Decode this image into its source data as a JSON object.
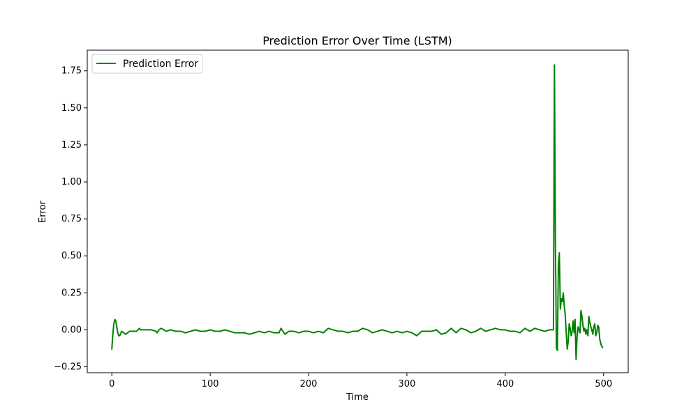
{
  "chart_data": {
    "type": "line",
    "title": "Prediction Error Over Time (LSTM)",
    "xlabel": "Time",
    "ylabel": "Error",
    "xlim": [
      -25,
      525
    ],
    "ylim": [
      -0.29,
      1.89
    ],
    "xticks": [
      0,
      100,
      200,
      300,
      400,
      500
    ],
    "xtick_labels": [
      "0",
      "100",
      "200",
      "300",
      "400",
      "500"
    ],
    "yticks": [
      -0.25,
      0,
      0.25,
      0.5,
      0.75,
      1.0,
      1.25,
      1.5,
      1.75
    ],
    "ytick_labels": [
      "−0.25",
      "0.00",
      "0.25",
      "0.50",
      "0.75",
      "1.00",
      "1.25",
      "1.50",
      "1.75"
    ],
    "grid": false,
    "legend_position": "upper-left",
    "series": [
      {
        "name": "Prediction Error",
        "color": "#008000",
        "x": [
          0,
          1,
          2,
          3,
          4,
          5,
          6,
          7,
          8,
          10,
          12,
          14,
          16,
          18,
          20,
          25,
          28,
          29,
          30,
          35,
          40,
          45,
          46,
          48,
          50,
          53,
          55,
          60,
          65,
          70,
          75,
          80,
          85,
          90,
          95,
          100,
          105,
          110,
          115,
          120,
          125,
          130,
          135,
          140,
          145,
          150,
          155,
          160,
          165,
          170,
          172,
          174,
          176,
          180,
          185,
          190,
          195,
          200,
          205,
          210,
          215,
          220,
          225,
          230,
          235,
          240,
          245,
          250,
          255,
          260,
          265,
          270,
          275,
          280,
          285,
          290,
          295,
          300,
          305,
          310,
          315,
          320,
          325,
          330,
          335,
          340,
          345,
          350,
          355,
          360,
          365,
          370,
          375,
          380,
          385,
          390,
          395,
          400,
          405,
          410,
          415,
          420,
          425,
          430,
          435,
          440,
          445,
          448,
          449,
          450,
          451,
          452,
          453,
          454,
          455,
          456,
          457,
          458,
          459,
          460,
          461,
          462,
          463,
          464,
          465,
          466,
          467,
          468,
          469,
          470,
          471,
          472,
          473,
          474,
          475,
          476,
          477,
          478,
          479,
          480,
          481,
          482,
          483,
          484,
          485,
          486,
          487,
          488,
          489,
          490,
          491,
          492,
          493,
          494,
          495,
          496,
          497,
          498,
          499
        ],
        "y": [
          -0.13,
          -0.03,
          0.04,
          0.07,
          0.06,
          0.02,
          -0.02,
          -0.04,
          -0.04,
          -0.01,
          -0.02,
          -0.03,
          -0.02,
          -0.01,
          -0.01,
          -0.01,
          0.01,
          0.0,
          0.0,
          0.0,
          0.0,
          -0.01,
          -0.02,
          0.0,
          0.01,
          0.0,
          -0.01,
          0.0,
          -0.01,
          -0.01,
          -0.02,
          -0.01,
          0.0,
          -0.01,
          -0.01,
          0.0,
          -0.01,
          -0.01,
          0.0,
          -0.01,
          -0.02,
          -0.02,
          -0.02,
          -0.03,
          -0.02,
          -0.01,
          -0.02,
          -0.01,
          -0.02,
          -0.02,
          0.01,
          -0.01,
          -0.03,
          -0.01,
          -0.01,
          -0.02,
          -0.01,
          -0.01,
          -0.02,
          -0.01,
          -0.02,
          0.01,
          0.0,
          -0.01,
          -0.01,
          -0.02,
          -0.01,
          -0.01,
          0.01,
          0.0,
          -0.02,
          -0.01,
          0.0,
          -0.01,
          -0.02,
          -0.01,
          -0.02,
          -0.01,
          -0.02,
          -0.04,
          -0.01,
          -0.01,
          -0.01,
          0.0,
          -0.03,
          -0.02,
          0.01,
          -0.02,
          0.01,
          0.0,
          -0.02,
          -0.01,
          0.01,
          -0.01,
          0.0,
          0.01,
          0.0,
          0.0,
          -0.01,
          -0.01,
          -0.02,
          0.01,
          -0.01,
          0.01,
          0.0,
          -0.01,
          0.0,
          0.0,
          0.0,
          1.79,
          0.6,
          -0.12,
          -0.14,
          0.44,
          0.52,
          0.14,
          0.21,
          0.19,
          0.25,
          0.16,
          0.1,
          -0.02,
          -0.13,
          -0.08,
          0.04,
          0.01,
          -0.04,
          -0.01,
          0.06,
          -0.02,
          0.07,
          -0.2,
          -0.05,
          0.02,
          0.0,
          -0.02,
          0.13,
          0.09,
          0.03,
          -0.01,
          0.01,
          -0.03,
          0.0,
          -0.04,
          0.09,
          0.05,
          0.02,
          0.0,
          -0.03,
          0.02,
          0.04,
          -0.04,
          -0.02,
          0.03,
          0.02,
          -0.06,
          -0.09,
          -0.11,
          -0.12
        ]
      }
    ]
  }
}
